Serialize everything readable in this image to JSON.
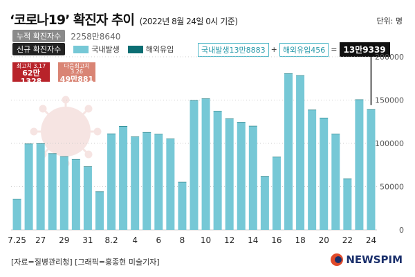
{
  "header": {
    "title": "‘코로나19’ 확진자 추이",
    "subtitle": "(2022년 8월 24일 0시 기준)",
    "unit": "단위: 명"
  },
  "cumulative": {
    "label": "누적 확진자수",
    "value": "2258만8640"
  },
  "new_cases_tag": "신규 확진자수",
  "legend": {
    "domestic": "국내발생",
    "overseas": "해외유입"
  },
  "callout": {
    "domestic": "국내발생13만8883",
    "plus": "+",
    "overseas": "해외유입456",
    "equals": "=",
    "total": "13만9339"
  },
  "records": {
    "highest": {
      "label": "최고치 3.17",
      "value": "62만1328"
    },
    "second": {
      "label": "다음최고치 3.26",
      "value": "49만881"
    }
  },
  "footer": {
    "source": "[자료=질병관리청] [그래픽=홍종현 미술기자]",
    "logo": "NEWSPIM"
  },
  "colors": {
    "domestic": "#76c8d6",
    "overseas": "#0b6e73",
    "grid": "#cccccc"
  },
  "icons": {
    "virus": "virus-icon"
  },
  "chart_data": {
    "type": "bar",
    "title": "‘코로나19’ 확진자 추이",
    "ylim": [
      0,
      200000
    ],
    "ytick_values": [
      0,
      50000,
      100000,
      150000,
      200000
    ],
    "yticks": [
      "0",
      "50000",
      "100000",
      "150000",
      "200000"
    ],
    "xtick_labels": [
      "7.25",
      "27",
      "29",
      "31",
      "8.2",
      "4",
      "6",
      "8",
      "10",
      "12",
      "14",
      "16",
      "18",
      "20",
      "22",
      "24"
    ],
    "categories": [
      "7.25",
      "7.26",
      "7.27",
      "7.28",
      "7.29",
      "7.30",
      "7.31",
      "8.1",
      "8.2",
      "8.3",
      "8.4",
      "8.5",
      "8.6",
      "8.7",
      "8.8",
      "8.9",
      "8.10",
      "8.11",
      "8.12",
      "8.13",
      "8.14",
      "8.15",
      "8.16",
      "8.17",
      "8.18",
      "8.19",
      "8.20",
      "8.21",
      "8.22",
      "8.23",
      "8.24"
    ],
    "series": [
      {
        "name": "국내발생",
        "values": [
          35500,
          99200,
          99500,
          88000,
          84600,
          81300,
          72900,
          44000,
          110900,
          119600,
          107400,
          112500,
          110400,
          105000,
          55000,
          149400,
          151400,
          137100,
          128200,
          124300,
          119800,
          61700,
          84000,
          180400,
          178200,
          138400,
          129200,
          110700,
          59000,
          150300,
          138883
        ]
      },
      {
        "name": "해외유입",
        "values": [
          400,
          400,
          400,
          400,
          400,
          400,
          400,
          400,
          400,
          400,
          400,
          400,
          400,
          400,
          400,
          400,
          400,
          400,
          400,
          400,
          400,
          400,
          400,
          400,
          400,
          400,
          400,
          400,
          400,
          400,
          456
        ]
      }
    ]
  }
}
